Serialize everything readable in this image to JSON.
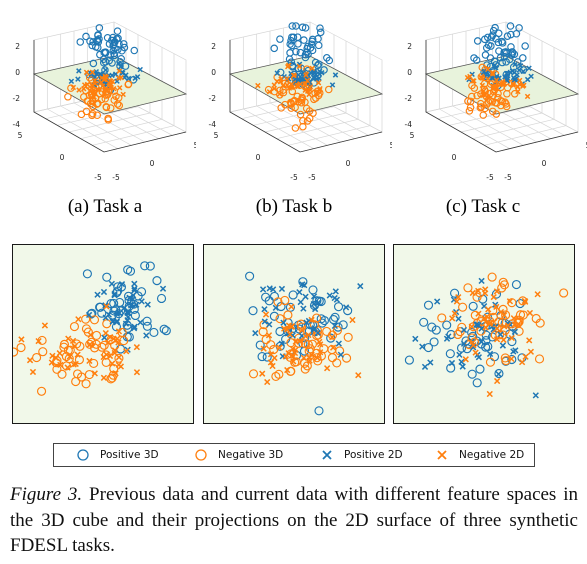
{
  "figure": {
    "subcaptions": [
      "(a) Task a",
      "(b) Task b",
      "(c) Task c"
    ],
    "legend": [
      {
        "label": "Positive 3D",
        "marker": "circle",
        "color": "#1f77b4"
      },
      {
        "label": "Negative 3D",
        "marker": "circle",
        "color": "#ff7f0e"
      },
      {
        "label": "Positive 2D",
        "marker": "x",
        "color": "#1f77b4"
      },
      {
        "label": "Negative 2D",
        "marker": "x",
        "color": "#ff7f0e"
      }
    ],
    "caption": {
      "label": "Figure 3.",
      "text": " Previous data and current data with different feature spaces in the 3D cube and their projections on the 2D surface of three synthetic FDESL tasks."
    },
    "axis3d": {
      "z_ticks": [
        "2",
        "0",
        "-2",
        "-4"
      ],
      "x_ticks": [
        "5",
        "0",
        "-5"
      ],
      "y_ticks": [
        "5",
        "0",
        "-5"
      ]
    },
    "colors": {
      "positive": "#1f77b4",
      "negative": "#ff7f0e",
      "plane": "#e8f3dc",
      "panel_bg": "#f1f8e9"
    }
  },
  "chart_data": [
    {
      "type": "scatter",
      "title": "(a) Task a",
      "view": "3d",
      "series": [
        {
          "name": "Positive 3D",
          "marker": "circle"
        },
        {
          "name": "Negative 3D",
          "marker": "circle"
        },
        {
          "name": "Positive 2D",
          "marker": "x"
        },
        {
          "name": "Negative 2D",
          "marker": "x"
        }
      ],
      "zlim": [
        -4,
        2
      ],
      "xlim": [
        -5,
        5
      ],
      "ylim": [
        -5,
        5
      ]
    },
    {
      "type": "scatter",
      "title": "(b) Task b",
      "view": "3d",
      "series": [
        {
          "name": "Positive 3D",
          "marker": "circle"
        },
        {
          "name": "Negative 3D",
          "marker": "circle"
        },
        {
          "name": "Positive 2D",
          "marker": "x"
        },
        {
          "name": "Negative 2D",
          "marker": "x"
        }
      ],
      "zlim": [
        -4,
        2
      ],
      "xlim": [
        -5,
        5
      ],
      "ylim": [
        -5,
        5
      ]
    },
    {
      "type": "scatter",
      "title": "(c) Task c",
      "view": "3d",
      "series": [
        {
          "name": "Positive 3D",
          "marker": "circle"
        },
        {
          "name": "Negative 3D",
          "marker": "circle"
        },
        {
          "name": "Positive 2D",
          "marker": "x"
        },
        {
          "name": "Negative 2D",
          "marker": "x"
        }
      ],
      "zlim": [
        -4,
        2
      ],
      "xlim": [
        -5,
        5
      ],
      "ylim": [
        -5,
        5
      ]
    },
    {
      "type": "scatter",
      "view": "2d-projection",
      "panel": "a",
      "series": [
        {
          "name": "Positive 3D"
        },
        {
          "name": "Negative 3D"
        },
        {
          "name": "Positive 2D"
        },
        {
          "name": "Negative 2D"
        }
      ]
    },
    {
      "type": "scatter",
      "view": "2d-projection",
      "panel": "b",
      "series": [
        {
          "name": "Positive 3D"
        },
        {
          "name": "Negative 3D"
        },
        {
          "name": "Positive 2D"
        },
        {
          "name": "Negative 2D"
        }
      ]
    },
    {
      "type": "scatter",
      "view": "2d-projection",
      "panel": "c",
      "series": [
        {
          "name": "Positive 3D"
        },
        {
          "name": "Negative 3D"
        },
        {
          "name": "Positive 2D"
        },
        {
          "name": "Negative 2D"
        }
      ]
    }
  ]
}
